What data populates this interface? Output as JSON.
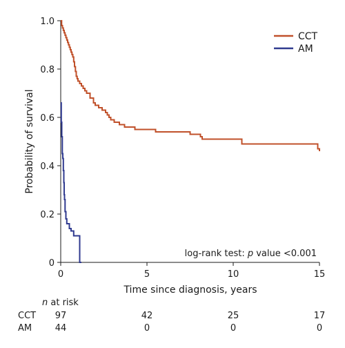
{
  "chart_data": {
    "type": "line",
    "xlabel": "Time since diagnosis, years",
    "ylabel": "Probability of survival",
    "xlim": [
      0,
      15
    ],
    "ylim": [
      0,
      1.0
    ],
    "x_ticks": [
      0,
      5,
      10,
      15
    ],
    "y_ticks": [
      0,
      0.2,
      0.4,
      0.6,
      0.8,
      1.0
    ],
    "y_tick_labels": [
      "0",
      "0.2",
      "0.4",
      "0.6",
      "0.8",
      "1.0"
    ],
    "grid": false,
    "legend_position": "top-right",
    "annotation": {
      "prefix": "log-rank test: ",
      "italic": "p",
      "suffix": " value <0.001"
    },
    "series": [
      {
        "name": "CCT",
        "color": "#c0502a",
        "step": true,
        "points": [
          [
            0,
            1.0
          ],
          [
            0.05,
            0.98
          ],
          [
            0.1,
            0.97
          ],
          [
            0.15,
            0.96
          ],
          [
            0.2,
            0.95
          ],
          [
            0.25,
            0.94
          ],
          [
            0.3,
            0.93
          ],
          [
            0.35,
            0.92
          ],
          [
            0.4,
            0.91
          ],
          [
            0.45,
            0.9
          ],
          [
            0.5,
            0.89
          ],
          [
            0.55,
            0.88
          ],
          [
            0.6,
            0.87
          ],
          [
            0.65,
            0.86
          ],
          [
            0.7,
            0.85
          ],
          [
            0.75,
            0.83
          ],
          [
            0.8,
            0.81
          ],
          [
            0.85,
            0.79
          ],
          [
            0.9,
            0.77
          ],
          [
            0.95,
            0.76
          ],
          [
            1.0,
            0.75
          ],
          [
            1.1,
            0.74
          ],
          [
            1.2,
            0.73
          ],
          [
            1.3,
            0.72
          ],
          [
            1.4,
            0.71
          ],
          [
            1.5,
            0.7
          ],
          [
            1.7,
            0.68
          ],
          [
            1.9,
            0.66
          ],
          [
            2.0,
            0.65
          ],
          [
            2.2,
            0.64
          ],
          [
            2.4,
            0.63
          ],
          [
            2.6,
            0.62
          ],
          [
            2.7,
            0.61
          ],
          [
            2.8,
            0.6
          ],
          [
            2.9,
            0.59
          ],
          [
            3.1,
            0.58
          ],
          [
            3.4,
            0.57
          ],
          [
            3.7,
            0.56
          ],
          [
            4.3,
            0.55
          ],
          [
            5.5,
            0.54
          ],
          [
            7.5,
            0.53
          ],
          [
            8.1,
            0.52
          ],
          [
            8.2,
            0.51
          ],
          [
            10.5,
            0.49
          ],
          [
            14.9,
            0.47
          ],
          [
            15.0,
            0.46
          ]
        ]
      },
      {
        "name": "AM",
        "color": "#2f3a8f",
        "step": true,
        "points": [
          [
            0,
            0.66
          ],
          [
            0.03,
            0.58
          ],
          [
            0.06,
            0.52
          ],
          [
            0.09,
            0.45
          ],
          [
            0.12,
            0.43
          ],
          [
            0.15,
            0.38
          ],
          [
            0.18,
            0.33
          ],
          [
            0.2,
            0.28
          ],
          [
            0.22,
            0.26
          ],
          [
            0.25,
            0.21
          ],
          [
            0.3,
            0.18
          ],
          [
            0.35,
            0.16
          ],
          [
            0.5,
            0.14
          ],
          [
            0.6,
            0.13
          ],
          [
            0.75,
            0.11
          ],
          [
            1.1,
            0.0
          ],
          [
            1.2,
            0.0
          ]
        ]
      }
    ],
    "risk_table": {
      "title_italic": "n",
      "title_rest": " at risk",
      "rows": [
        {
          "label": "CCT",
          "values": [
            "97",
            "42",
            "25",
            "17"
          ]
        },
        {
          "label": "AM",
          "values": [
            "44",
            "0",
            "0",
            "0"
          ]
        }
      ]
    }
  }
}
